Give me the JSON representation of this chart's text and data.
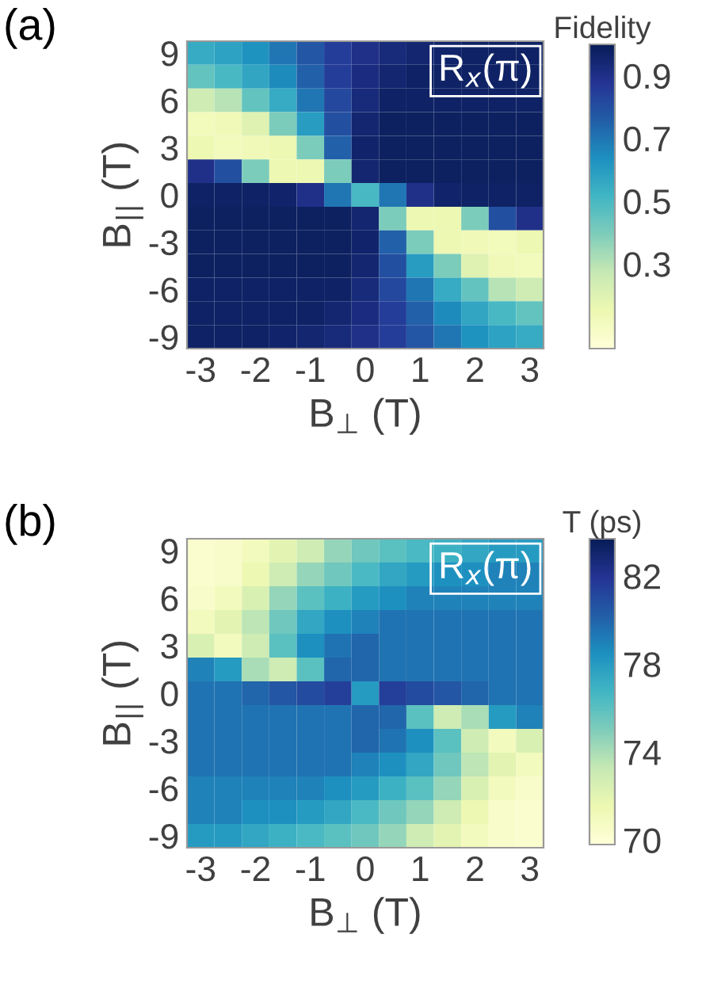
{
  "chart_data": [
    {
      "type": "heatmap",
      "xlabel": "B$_{⊥}$ (T)",
      "ylabel": "B$_{||}$ (T)",
      "clabel": "Fidelity",
      "annotations": [
        "(a)",
        "R$_{x}$(π)"
      ],
      "categories": [
        "-3",
        null,
        "-2",
        null,
        "-1",
        null,
        "0",
        null,
        "1",
        null,
        "2",
        null,
        "3"
      ],
      "y_categories": [
        "9",
        null,
        "6",
        null,
        "3",
        null,
        "0",
        null,
        "-3",
        null,
        "-6",
        null,
        "-9"
      ],
      "clim": [
        0.03,
        1.0
      ],
      "cticks": [
        0.3,
        0.5,
        0.7,
        0.9
      ],
      "cells": [
        [
          0.55,
          0.58,
          0.63,
          0.7,
          0.78,
          0.85,
          0.9,
          0.93,
          0.95,
          0.96,
          0.97,
          0.97,
          0.97
        ],
        [
          0.45,
          0.5,
          0.57,
          0.65,
          0.75,
          0.85,
          0.92,
          0.95,
          0.97,
          0.97,
          0.97,
          0.97,
          0.97
        ],
        [
          0.25,
          0.3,
          0.45,
          0.55,
          0.7,
          0.82,
          0.93,
          0.97,
          0.97,
          0.97,
          0.97,
          0.97,
          0.97
        ],
        [
          0.12,
          0.13,
          0.2,
          0.4,
          0.6,
          0.8,
          0.95,
          0.98,
          0.98,
          0.98,
          0.98,
          0.98,
          0.98
        ],
        [
          0.15,
          0.12,
          0.13,
          0.15,
          0.4,
          0.75,
          0.96,
          0.98,
          0.98,
          0.98,
          0.98,
          0.98,
          0.98
        ],
        [
          0.9,
          0.8,
          0.4,
          0.15,
          0.15,
          0.4,
          0.95,
          0.98,
          0.98,
          0.98,
          0.98,
          0.98,
          0.98
        ],
        [
          0.97,
          0.97,
          0.97,
          0.96,
          0.9,
          0.7,
          0.5,
          0.7,
          0.9,
          0.96,
          0.97,
          0.97,
          0.97
        ],
        [
          0.98,
          0.98,
          0.98,
          0.98,
          0.98,
          0.98,
          0.95,
          0.4,
          0.15,
          0.15,
          0.4,
          0.8,
          0.9
        ],
        [
          0.98,
          0.98,
          0.98,
          0.98,
          0.98,
          0.98,
          0.96,
          0.75,
          0.4,
          0.15,
          0.13,
          0.12,
          0.15
        ],
        [
          0.98,
          0.98,
          0.98,
          0.98,
          0.98,
          0.98,
          0.95,
          0.8,
          0.6,
          0.4,
          0.2,
          0.13,
          0.12
        ],
        [
          0.97,
          0.97,
          0.97,
          0.97,
          0.97,
          0.97,
          0.93,
          0.82,
          0.7,
          0.55,
          0.45,
          0.3,
          0.25
        ],
        [
          0.97,
          0.97,
          0.97,
          0.97,
          0.97,
          0.95,
          0.92,
          0.85,
          0.75,
          0.65,
          0.57,
          0.5,
          0.45
        ],
        [
          0.97,
          0.97,
          0.97,
          0.96,
          0.95,
          0.93,
          0.9,
          0.85,
          0.78,
          0.7,
          0.63,
          0.58,
          0.55
        ]
      ]
    },
    {
      "type": "heatmap",
      "xlabel": "B$_{⊥}$ (T)",
      "ylabel": "B$_{||}$ (T)",
      "clabel": "T (ps)",
      "annotations": [
        "(b)",
        "R$_{x}$(π)"
      ],
      "categories": [
        "-3",
        null,
        "-2",
        null,
        "-1",
        null,
        "0",
        null,
        "1",
        null,
        "2",
        null,
        "3"
      ],
      "y_categories": [
        "9",
        null,
        "6",
        null,
        "3",
        null,
        "0",
        null,
        "-3",
        null,
        "-6",
        null,
        "-9"
      ],
      "clim": [
        69.8,
        83.7
      ],
      "cticks": [
        70,
        74,
        78,
        82
      ],
      "cells": [
        [
          70.3,
          70.5,
          71,
          72,
          73,
          74.5,
          75.5,
          76,
          76.5,
          77,
          77.5,
          78,
          78
        ],
        [
          70.3,
          70.5,
          71.5,
          73,
          74.5,
          75.5,
          76.5,
          77.5,
          78,
          78.5,
          78.5,
          79,
          79
        ],
        [
          70.5,
          71,
          72.5,
          74.5,
          76,
          77,
          78,
          78.5,
          79,
          79,
          79,
          79,
          79
        ],
        [
          71,
          72,
          73.5,
          75.5,
          77.5,
          78.5,
          79,
          79.5,
          79.5,
          79.5,
          79.5,
          79.5,
          79.5
        ],
        [
          72.5,
          71,
          73,
          76,
          78.5,
          79.5,
          80,
          79.5,
          79.5,
          79.5,
          79.5,
          79.5,
          79.5
        ],
        [
          79,
          78,
          74,
          73,
          76,
          80,
          80,
          79.5,
          79.5,
          79.5,
          79.5,
          79.5,
          79.5
        ],
        [
          79.5,
          79.5,
          80,
          80.5,
          81,
          81.5,
          78,
          81.5,
          81,
          80.5,
          80,
          79.5,
          79.5
        ],
        [
          79.5,
          79.5,
          79.5,
          79.5,
          79.5,
          79.5,
          80,
          80,
          76,
          73,
          74,
          78,
          79
        ],
        [
          79.5,
          79.5,
          79.5,
          79.5,
          79.5,
          79.5,
          80,
          79.5,
          78.5,
          76,
          73,
          71,
          72.5
        ],
        [
          79.5,
          79.5,
          79.5,
          79.5,
          79.5,
          79.5,
          79,
          78.5,
          77.5,
          75.5,
          73.5,
          72,
          71
        ],
        [
          79,
          79,
          79,
          79,
          79,
          78.5,
          78,
          77,
          76,
          74.5,
          72.5,
          71,
          70.5
        ],
        [
          79,
          79,
          78.5,
          78.5,
          78,
          77.5,
          76.5,
          75.5,
          74.5,
          73,
          71.5,
          70.5,
          70.3
        ],
        [
          78,
          78,
          77.5,
          77,
          76.5,
          76,
          75.5,
          74.5,
          73,
          72,
          71,
          70.5,
          70.3
        ]
      ]
    }
  ]
}
